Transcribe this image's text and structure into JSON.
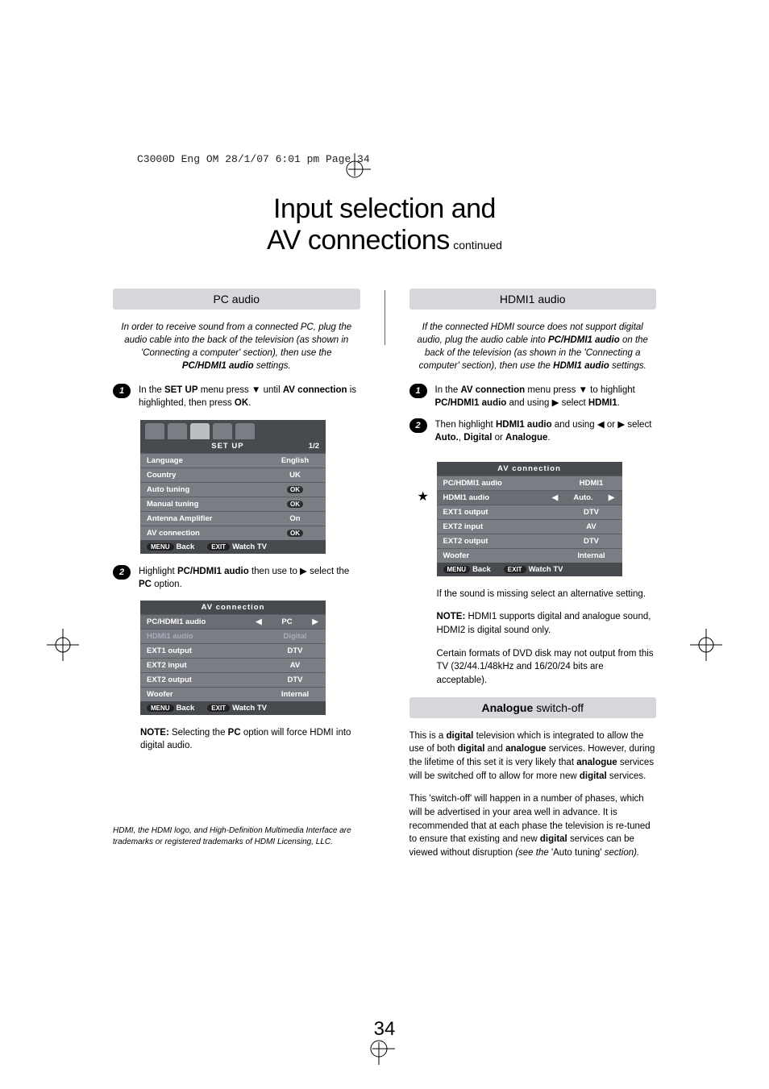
{
  "meta_header": "C3000D Eng OM  28/1/07  6:01 pm  Page 34",
  "title_line1": "Input selection and",
  "title_line2": "AV connections",
  "title_continued": "continued",
  "page_number": "34",
  "left": {
    "header": "PC audio",
    "intro_html": "In order to receive sound from a connected PC, plug the audio cable into the back of the television (as shown in 'Connecting a computer' section), then use the <b>PC/HDMI1 audio</b> settings.",
    "step1_html": "In the <b>SET UP</b> menu press ▼ until <b>AV connection</b> is highlighted, then press <b>OK</b>.",
    "step2_html": "Highlight <b>PC/HDMI1 audio</b> then use to ▶ select the <b>PC</b> option.",
    "note_html": "<b>NOTE:</b> Selecting the <b>PC</b> option will force HDMI into digital audio.",
    "setup_table": {
      "title": "SET UP",
      "page": "1/2",
      "rows": [
        {
          "label": "Language",
          "value": "English"
        },
        {
          "label": "Country",
          "value": "UK"
        },
        {
          "label": "Auto tuning",
          "value": "OK"
        },
        {
          "label": "Manual tuning",
          "value": "OK"
        },
        {
          "label": "Antenna Amplifier",
          "value": "On"
        },
        {
          "label": "AV connection",
          "value": "OK"
        }
      ],
      "footer": {
        "back": "Back",
        "watch": "Watch TV",
        "back_btn": "MENU",
        "watch_btn": "EXIT"
      }
    },
    "av_table": {
      "title": "AV connection",
      "rows": [
        {
          "label": "PC/HDMI1 audio",
          "value": "PC",
          "arrows": true,
          "sel": true
        },
        {
          "label": "HDMI1 audio",
          "value": "Digital",
          "dim": true
        },
        {
          "label": "EXT1 output",
          "value": "DTV"
        },
        {
          "label": "EXT2 input",
          "value": "AV"
        },
        {
          "label": "EXT2 output",
          "value": "DTV"
        },
        {
          "label": "Woofer",
          "value": "Internal"
        }
      ],
      "footer": {
        "back": "Back",
        "watch": "Watch TV",
        "back_btn": "MENU",
        "watch_btn": "EXIT"
      }
    },
    "footnote": "HDMI, the HDMI logo, and High-Definition Multimedia Interface are trademarks or registered trademarks of HDMI Licensing, LLC."
  },
  "right": {
    "header1": "HDMI1 audio",
    "intro_html": "If the connected HDMI source does not support digital audio, plug the audio cable into <b>PC/HDMI1 audio</b> on the back of the television (as shown in the 'Connecting a computer' section), then use the <b>HDMI1 audio</b> settings.",
    "step1_html": "In the <b>AV connection</b> menu press ▼ to highlight <b>PC/HDMI1 audio</b> and using ▶ select <b>HDMI1</b>.",
    "step2_html": "Then highlight <b>HDMI1 audio</b> and using ◀ or ▶ select <b>Auto.</b>, <b>Digital</b> or <b>Analogue</b>.",
    "av_table": {
      "title": "AV connection",
      "rows": [
        {
          "label": "PC/HDMI1 audio",
          "value": "HDMI1"
        },
        {
          "label": "HDMI1 audio",
          "value": "Auto.",
          "arrows": true,
          "sel": true,
          "star": true
        },
        {
          "label": "EXT1 output",
          "value": "DTV"
        },
        {
          "label": "EXT2 input",
          "value": "AV"
        },
        {
          "label": "EXT2 output",
          "value": "DTV"
        },
        {
          "label": "Woofer",
          "value": "Internal"
        }
      ],
      "footer": {
        "back": "Back",
        "watch": "Watch TV",
        "back_btn": "MENU",
        "watch_btn": "EXIT"
      }
    },
    "para1": "If the sound is missing select an alternative setting.",
    "para2_html": "<b>NOTE:</b> HDMI1 supports digital and analogue sound, HDMI2 is digital sound only.",
    "para3": "Certain formats of DVD disk may not output from this TV (32/44.1/48kHz and 16/20/24 bits are acceptable).",
    "header2_html": "<b>Analogue</b> switch-off",
    "analogue_p1_html": "This is a <b>digital</b> television which is integrated to allow the use of both <b>digital</b> and <b>analogue</b> services. However, during the lifetime of this set it is very likely that <b>analogue</b> services will be switched off to allow for more new <b>digital</b> services.",
    "analogue_p2_html": "This 'switch-off' will happen in a number of phases, which will be advertised in your area well in advance. It is recommended that at each phase the television is re-tuned to ensure that existing and new <b>digital</b> services can be viewed without disruption <i>(see the</i> 'Auto tuning' <i>section).</i>"
  },
  "colors": {
    "section_bg": "#d5d7db",
    "ui_header_bg": "#474b50",
    "ui_row_bg": "#7a7e84",
    "ui_row_sel_bg": "#6a6e74",
    "badge_bg": "#000000"
  }
}
